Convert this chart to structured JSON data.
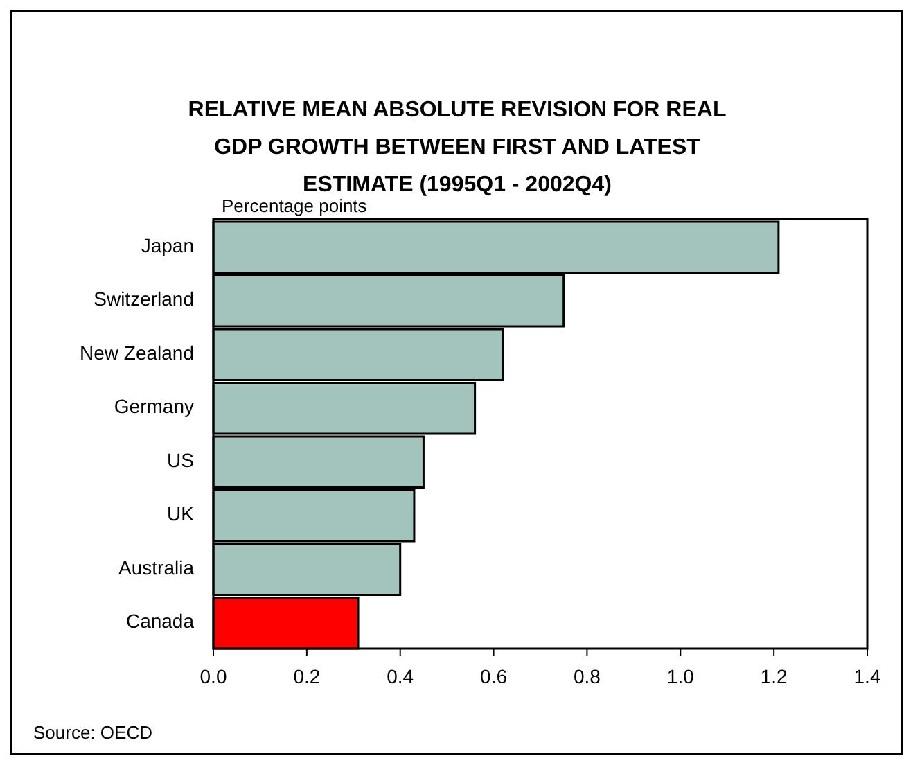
{
  "chart_data": {
    "type": "bar",
    "orientation": "horizontal",
    "title": "RELATIVE MEAN ABSOLUTE REVISION FOR REAL GDP GROWTH BETWEEN FIRST AND LATEST ESTIMATE (1995Q1 - 2002Q4)",
    "xlabel": "Percentage points",
    "categories": [
      "Japan",
      "Switzerland",
      "New Zealand",
      "Germany",
      "US",
      "UK",
      "Australia",
      "Canada"
    ],
    "values": [
      1.21,
      0.75,
      0.62,
      0.56,
      0.45,
      0.43,
      0.4,
      0.31
    ],
    "colors": [
      "#a3c4bd",
      "#a3c4bd",
      "#a3c4bd",
      "#a3c4bd",
      "#a3c4bd",
      "#a3c4bd",
      "#a3c4bd",
      "#ff0000"
    ],
    "xlim": [
      0,
      1.4
    ],
    "xticks": [
      {
        "value": 0,
        "label": "0.0"
      },
      {
        "value": 0.2,
        "label": "0.2"
      },
      {
        "value": 0.4,
        "label": "0.4"
      },
      {
        "value": 0.6,
        "label": "0.6"
      },
      {
        "value": 0.8,
        "label": "0.8"
      },
      {
        "value": 1.0,
        "label": "1.0"
      },
      {
        "value": 1.2,
        "label": "1.2"
      },
      {
        "value": 1.4,
        "label": "1.4"
      }
    ],
    "annotations": [
      "Source: OECD"
    ]
  }
}
